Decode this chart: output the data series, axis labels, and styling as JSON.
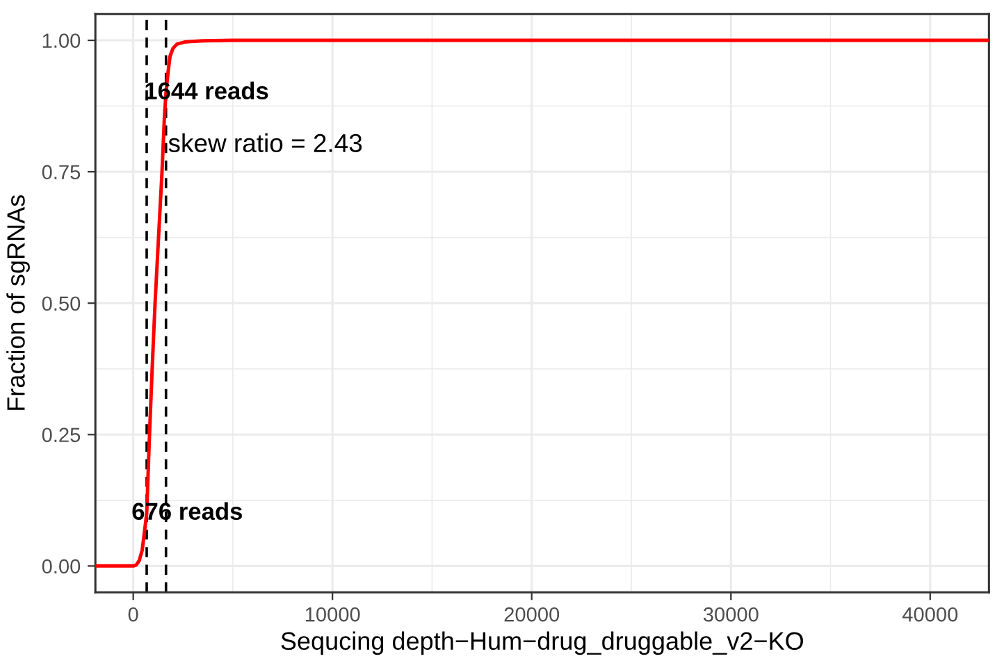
{
  "chart_data": {
    "type": "line",
    "xlabel": "Sequcing depth−Hum−drug_druggable_v2−KO",
    "ylabel": "Fraction of sgRNAs",
    "series": [
      {
        "color": "#ff0000",
        "x": [
          -1900,
          0,
          150,
          300,
          450,
          580,
          676,
          817,
          950,
          1096,
          1270,
          1445,
          1560,
          1644,
          1750,
          1850,
          2000,
          2200,
          2600,
          3500,
          5000,
          42950
        ],
        "values": [
          0,
          0,
          0.002,
          0.01,
          0.03,
          0.07,
          0.1,
          0.25,
          0.375,
          0.5,
          0.625,
          0.75,
          0.85,
          0.9,
          0.94,
          0.97,
          0.985,
          0.993,
          0.997,
          0.999,
          1.0,
          1.0
        ]
      }
    ],
    "xlim": [
      -1900,
      42950
    ],
    "xticks": [
      0,
      10000,
      20000,
      30000,
      40000
    ],
    "ylim": [
      -0.05,
      1.05
    ],
    "yticks": [
      {
        "value": 0,
        "label": "0.00"
      },
      {
        "value": 0.25,
        "label": "0.25"
      },
      {
        "value": 0.5,
        "label": "0.50"
      },
      {
        "value": 0.75,
        "label": "0.75"
      },
      {
        "value": 1,
        "label": "1.00"
      }
    ],
    "ref_lines": [
      {
        "axis": "x",
        "value": 676,
        "label": "676 reads",
        "color": "#000000",
        "line_style": "dashed"
      },
      {
        "axis": "x",
        "value": 1644,
        "label": "1644 reads",
        "color": "#000000",
        "line_style": "dashed"
      }
    ],
    "annotations": [
      "skew ratio = 2.43"
    ],
    "grid": true,
    "legend": false,
    "marker": "none",
    "line_style": "solid"
  }
}
